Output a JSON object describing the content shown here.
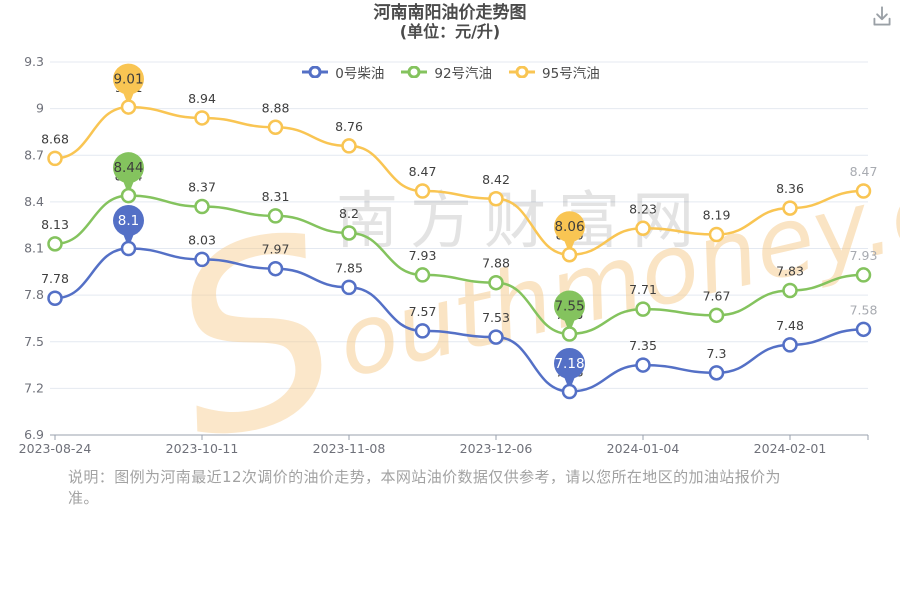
{
  "header": {
    "title": "河南南阳油价走势图",
    "subtitle": "(单位：元/升)"
  },
  "toolbar": {
    "download_icon": "download-tray-arrow"
  },
  "chart_data": {
    "type": "line",
    "title": "河南南阳油价走势图",
    "subtitle": "(单位：元/升)",
    "num_points": 12,
    "x_tick_labels": [
      "2023-08-24",
      "2023-10-11",
      "2023-11-08",
      "2023-12-06",
      "2024-01-04",
      "2024-02-01"
    ],
    "x_tick_point_indices": [
      0,
      2,
      4,
      6,
      8,
      10
    ],
    "ylim": [
      6.9,
      9.3
    ],
    "y_ticks": [
      "6.9",
      "7.2",
      "7.5",
      "7.8",
      "8.1",
      "8.4",
      "8.7",
      "9",
      "9.3"
    ],
    "grid": true,
    "legend_position": "top",
    "series": [
      {
        "name": "0号柴油",
        "color": "#5470c6",
        "values": [
          7.78,
          8.1,
          8.03,
          7.97,
          7.85,
          7.57,
          7.53,
          7.18,
          7.35,
          7.3,
          7.48,
          7.58
        ],
        "pin_indices": [
          1,
          7
        ],
        "pin_text_color": "#ffffff"
      },
      {
        "name": "92号汽油",
        "color": "#84c35e",
        "values": [
          8.13,
          8.44,
          8.37,
          8.31,
          8.2,
          7.93,
          7.88,
          7.55,
          7.71,
          7.67,
          7.83,
          7.93
        ],
        "pin_indices": [
          1,
          7
        ],
        "pin_text_color": "#3d3d3d"
      },
      {
        "name": "95号汽油",
        "color": "#f9c553",
        "values": [
          8.68,
          9.01,
          8.94,
          8.88,
          8.76,
          8.47,
          8.42,
          8.06,
          8.23,
          8.19,
          8.36,
          8.47
        ],
        "pin_indices": [
          1,
          7
        ],
        "pin_text_color": "#3d3d3d"
      }
    ],
    "label_color": "#3f3f3f",
    "last_label_color": "#a8abb1",
    "axis_color": "#98a0ae",
    "grid_color": "#e4e9f1",
    "tick_label_color": "#6e7079"
  },
  "watermark": {
    "cn": "南方财富网",
    "en": "southmoney.com"
  },
  "footer": {
    "lines": [
      "说明：图例为河南最近12次调价的油价走势，本网站油价数据仅供参考，请以您所在地区的加油站报价为",
      "准。"
    ]
  }
}
